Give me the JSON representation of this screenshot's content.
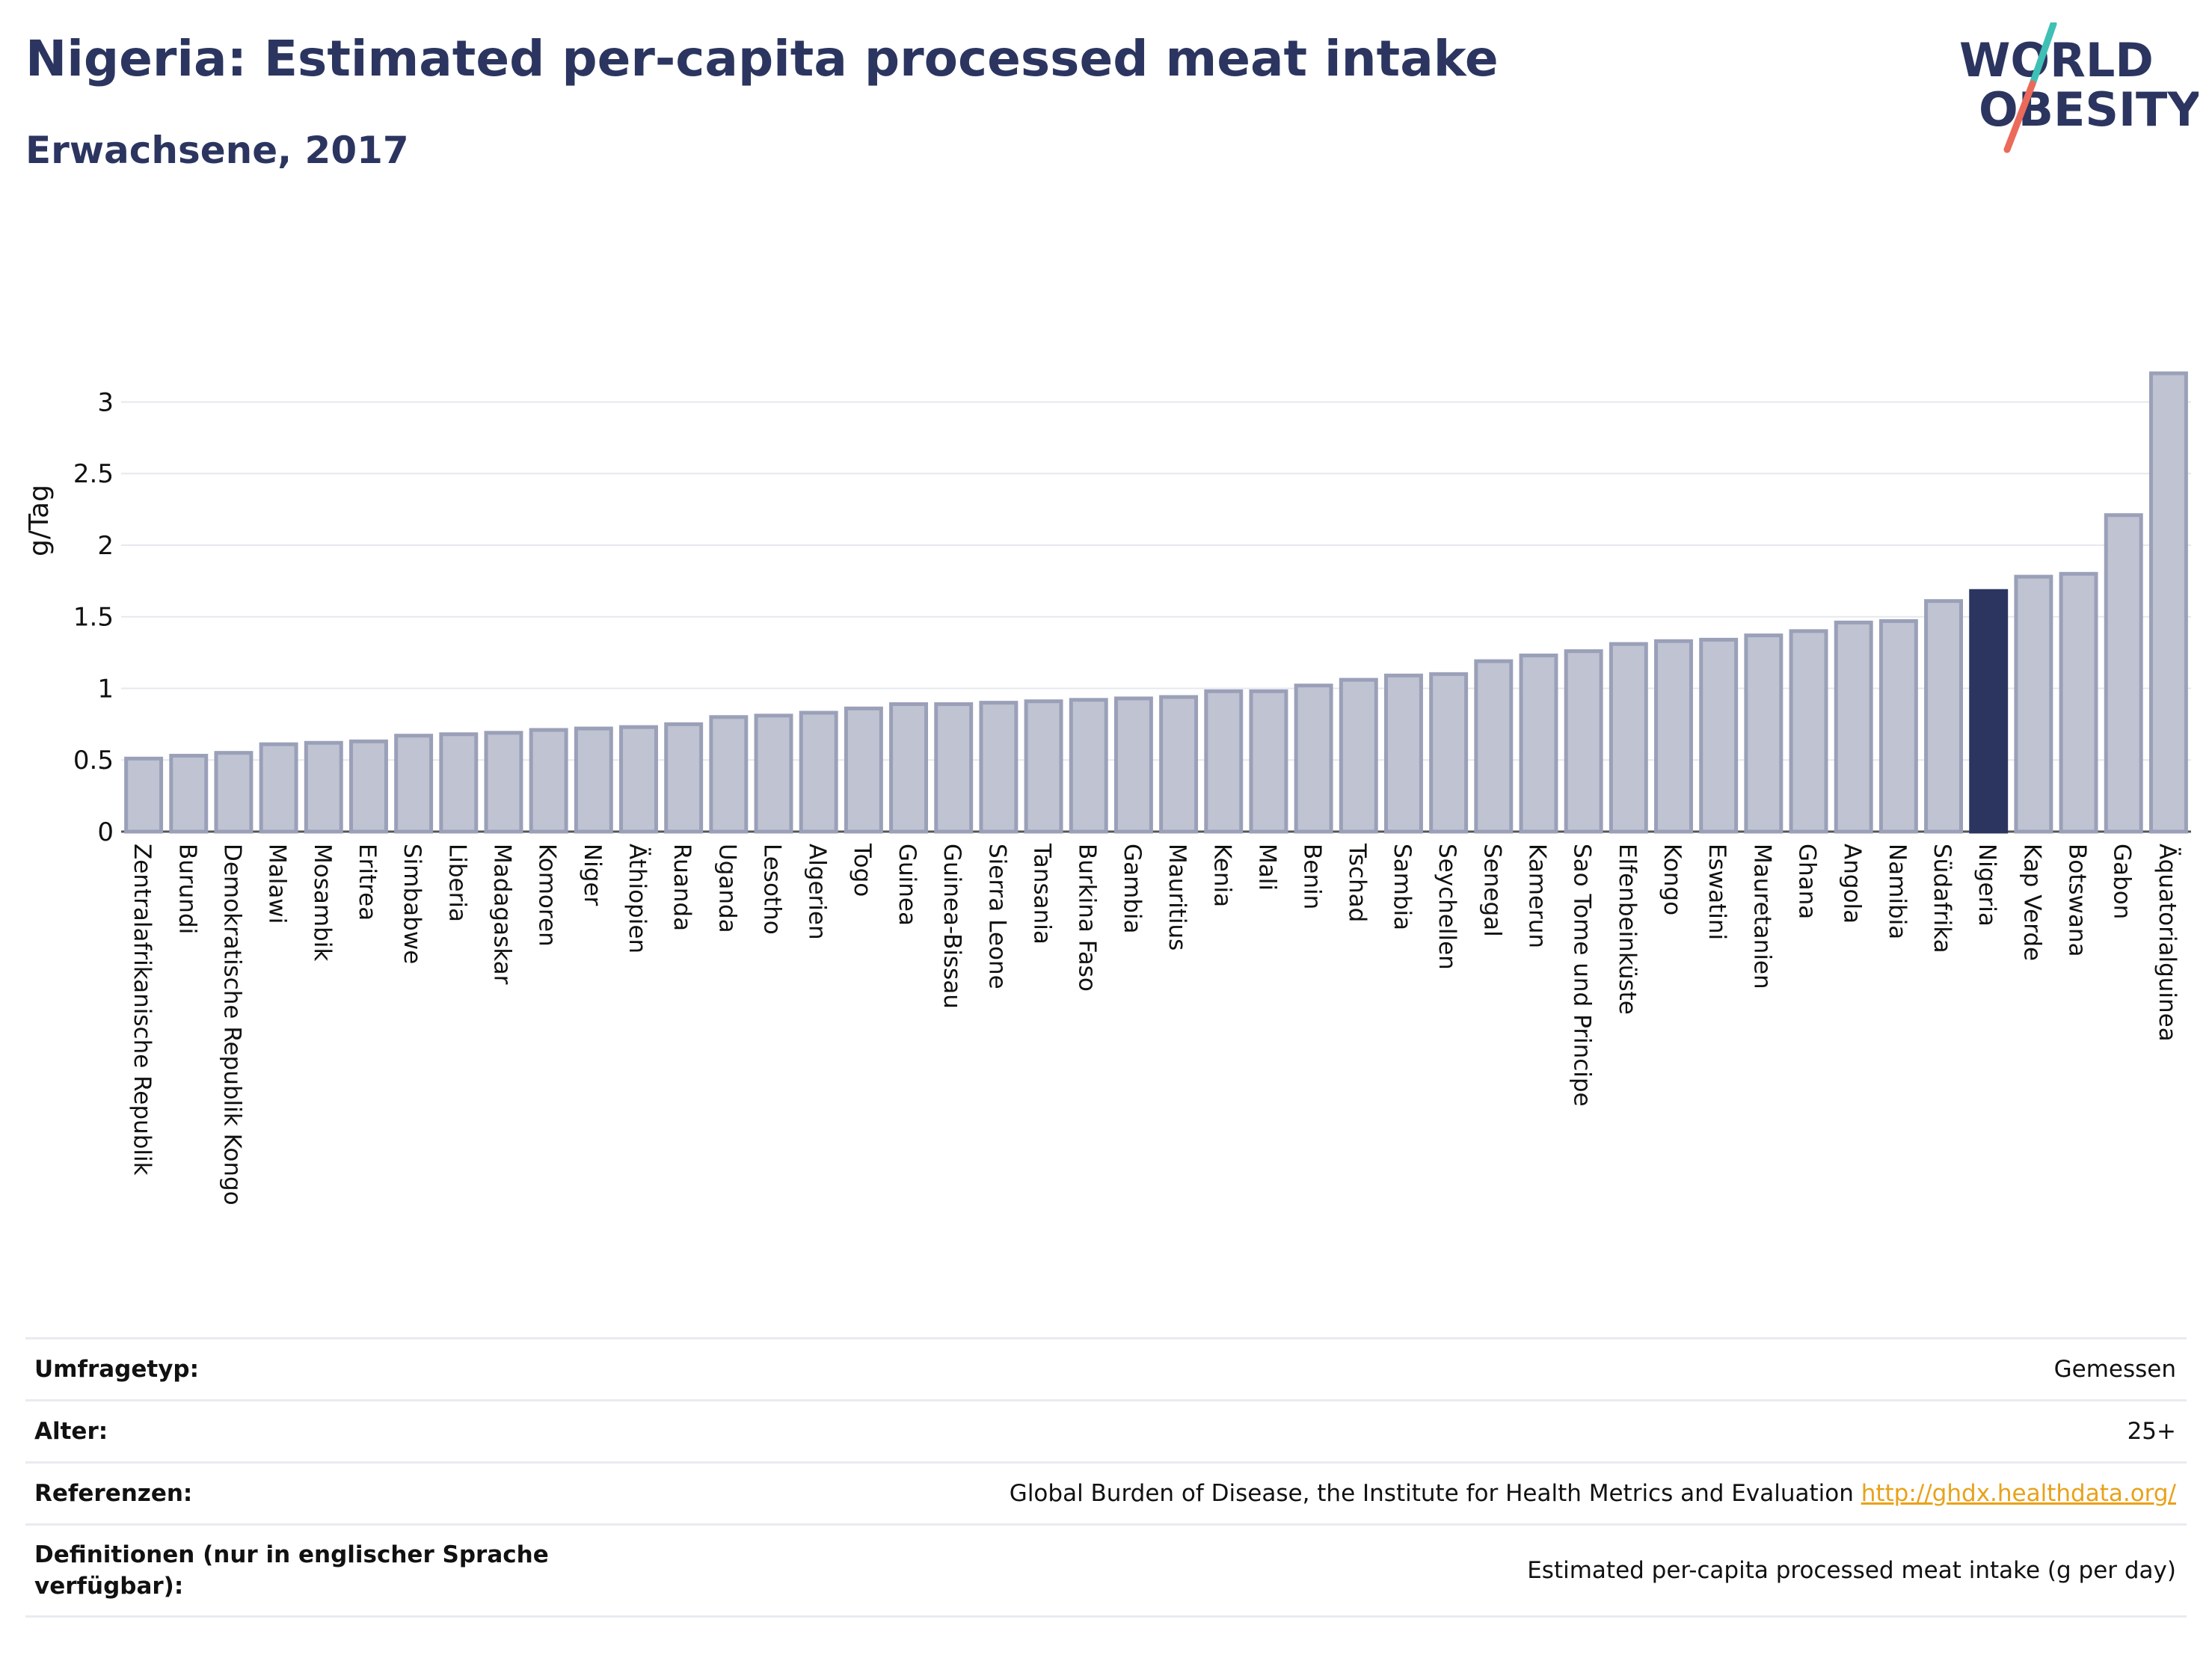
{
  "header": {
    "title": "Nigeria: Estimated per-capita processed meat intake",
    "subtitle": "Erwachsene, 2017",
    "logo_line1": "WORLD",
    "logo_line2": "OBESITY"
  },
  "colors": {
    "bar": "#bfc3d2",
    "bar_border": "#9aa0b8",
    "highlight": "#2b3560",
    "text": "#2b3560",
    "grid": "#e6e8ef",
    "link": "#e8a21a",
    "logo_teal": "#3fc0b4",
    "logo_coral": "#ec6a5a"
  },
  "chart_data": {
    "type": "bar",
    "ylabel": "g/Tag",
    "ylim": [
      0,
      3.3
    ],
    "yticks": [
      0,
      0.5,
      1,
      1.5,
      2,
      2.5,
      3
    ],
    "ytick_labels": [
      "0",
      "0.5",
      "1",
      "1.5",
      "2",
      "2.5",
      "3"
    ],
    "grid": true,
    "highlight": "Nigeria",
    "categories": [
      "Zentralafrikanische Republik",
      "Burundi",
      "Demokratische Republik Kongo",
      "Malawi",
      "Mosambik",
      "Eritrea",
      "Simbabwe",
      "Liberia",
      "Madagaskar",
      "Komoren",
      "Niger",
      "Äthiopien",
      "Ruanda",
      "Uganda",
      "Lesotho",
      "Algerien",
      "Togo",
      "Guinea",
      "Guinea-Bissau",
      "Sierra Leone",
      "Tansania",
      "Burkina Faso",
      "Gambia",
      "Mauritius",
      "Kenia",
      "Mali",
      "Benin",
      "Tschad",
      "Sambia",
      "Seychellen",
      "Senegal",
      "Kamerun",
      "Sao Tome und Principe",
      "Elfenbeinküste",
      "Kongo",
      "Eswatini",
      "Mauretanien",
      "Ghana",
      "Angola",
      "Namibia",
      "Südafrika",
      "Nigeria",
      "Kap Verde",
      "Botswana",
      "Gabon",
      "Äquatorialguinea"
    ],
    "values": [
      0.51,
      0.53,
      0.55,
      0.61,
      0.62,
      0.63,
      0.67,
      0.68,
      0.69,
      0.71,
      0.72,
      0.73,
      0.75,
      0.8,
      0.81,
      0.83,
      0.86,
      0.89,
      0.89,
      0.9,
      0.91,
      0.92,
      0.93,
      0.94,
      0.98,
      0.98,
      1.02,
      1.06,
      1.09,
      1.1,
      1.19,
      1.23,
      1.26,
      1.31,
      1.33,
      1.34,
      1.37,
      1.4,
      1.46,
      1.47,
      1.61,
      1.68,
      1.78,
      1.8,
      2.21,
      3.2
    ]
  },
  "info": {
    "survey_label": "Umfragetyp:",
    "survey_value": "Gemessen",
    "age_label": "Alter:",
    "age_value": "25+",
    "refs_label": "Referenzen:",
    "refs_value": "Global Burden of Disease, the Institute for Health Metrics and Evaluation",
    "refs_link": "http://ghdx.healthdata.org/",
    "defs_label": "Definitionen (nur in englischer Sprache verfügbar):",
    "defs_value": "Estimated per-capita processed meat intake (g per day)"
  }
}
